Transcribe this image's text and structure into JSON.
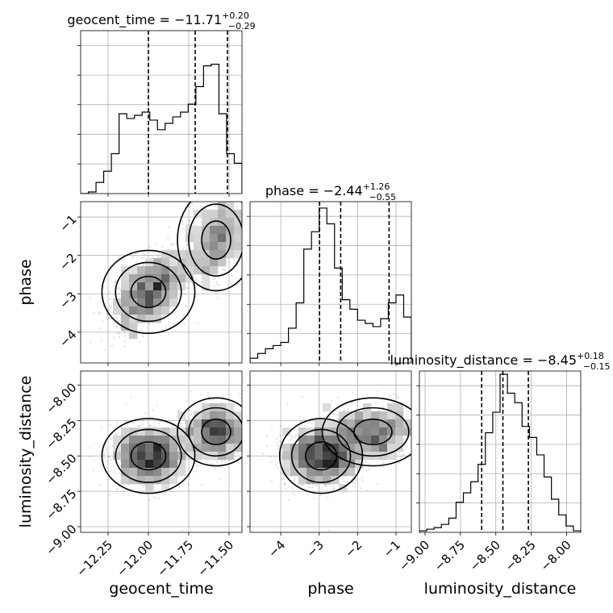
{
  "chart_data": {
    "type": "corner",
    "parameters": [
      "geocent_time",
      "phase",
      "luminosity_distance"
    ],
    "titles": [
      {
        "param": "geocent_time",
        "median": "−11.71",
        "plus": "+0.20",
        "minus": "−0.29"
      },
      {
        "param": "phase",
        "median": "−2.44",
        "plus": "+1.26",
        "minus": "−0.55"
      },
      {
        "param": "luminosity_distance",
        "median": "−8.45",
        "plus": "+0.18",
        "minus": "−0.15"
      }
    ],
    "ranges": {
      "geocent_time": [
        -12.42,
        -11.42
      ],
      "phase": [
        -4.8,
        -0.6
      ],
      "luminosity_distance": [
        -9.04,
        -7.9
      ]
    },
    "ticks": {
      "geocent_time": {
        "values": [
          -12.25,
          -12.0,
          -11.75,
          -11.5
        ],
        "labels": [
          "−12.25",
          "−12.00",
          "−11.75",
          "−11.50"
        ]
      },
      "phase": {
        "values": [
          -4,
          -3,
          -2,
          -1
        ],
        "labels": [
          "−4",
          "−3",
          "−2",
          "−1"
        ]
      },
      "luminosity_distance": {
        "values": [
          -9.0,
          -8.75,
          -8.5,
          -8.25,
          -8.0
        ],
        "labels": [
          "−9.00",
          "−8.75",
          "−8.50",
          "−8.25",
          "−8.00"
        ]
      }
    },
    "quantiles": {
      "geocent_time": [
        -12.0,
        -11.71,
        -11.51
      ],
      "phase": [
        -2.99,
        -2.44,
        -1.18
      ],
      "luminosity_distance": [
        -8.6,
        -8.45,
        -8.27
      ]
    },
    "histograms": {
      "geocent_time": [
        0,
        0.01,
        0.07,
        0.14,
        0.25,
        0.5,
        0.47,
        0.49,
        0.51,
        0.46,
        0.4,
        0.44,
        0.48,
        0.51,
        0.56,
        0.67,
        0.8,
        0.81,
        0.5,
        0.25,
        0.19
      ],
      "phase": [
        0.03,
        0.06,
        0.09,
        0.11,
        0.13,
        0.22,
        0.38,
        0.72,
        0.83,
        0.98,
        0.88,
        0.6,
        0.4,
        0.34,
        0.27,
        0.25,
        0.23,
        0.28,
        0.38,
        0.43,
        0.29
      ],
      "luminosity_distance": [
        0.01,
        0.02,
        0.03,
        0.05,
        0.09,
        0.19,
        0.25,
        0.32,
        0.43,
        0.63,
        0.76,
        1.0,
        0.88,
        0.82,
        0.67,
        0.6,
        0.49,
        0.35,
        0.21,
        0.11,
        0.04,
        0.01
      ]
    },
    "grid": true
  }
}
